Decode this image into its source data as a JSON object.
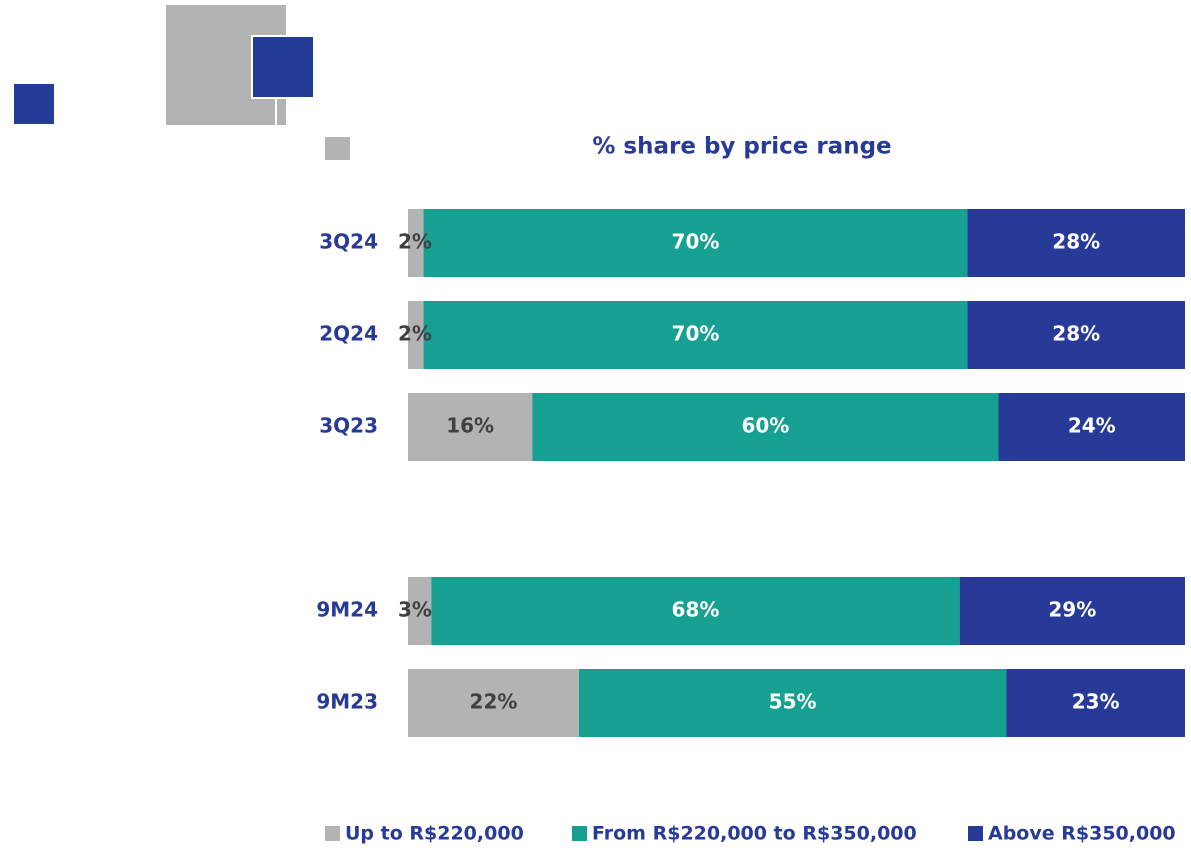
{
  "chart_data": {
    "type": "stacked-barh",
    "title": "% share by price range",
    "categories": [
      "3Q24",
      "2Q24",
      "3Q23",
      "9M24",
      "9M23"
    ],
    "xlim": [
      0,
      100
    ],
    "series": [
      {
        "name": "Up to R$220,000",
        "color": "#b3b3b3",
        "label_color": "#404040",
        "values": [
          2,
          2,
          16,
          3,
          22
        ],
        "value_labels": [
          "2%",
          "2%",
          "16%",
          "3%",
          "22%"
        ]
      },
      {
        "name": "From R$220,000 to R$350,000",
        "color": "#17a092",
        "label_color": "#ffffff",
        "values": [
          70,
          70,
          60,
          68,
          55
        ],
        "value_labels": [
          "70%",
          "70%",
          "60%",
          "68%",
          "55%"
        ]
      },
      {
        "name": "Above R$350,000",
        "color": "#283a97",
        "label_color": "#ffffff",
        "values": [
          28,
          28,
          24,
          29,
          23
        ],
        "value_labels": [
          "28%",
          "28%",
          "24%",
          "29%",
          "23%"
        ]
      }
    ],
    "category_color": "#283a97",
    "legend": "bottom"
  }
}
